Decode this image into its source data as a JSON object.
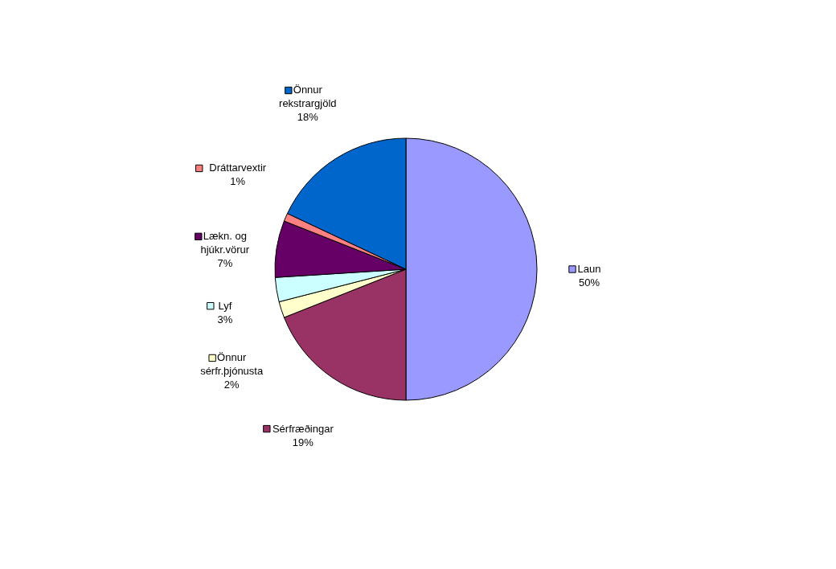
{
  "chart_data": {
    "type": "pie",
    "categories": [
      "Laun",
      "Sérfræðingar",
      "Önnur sérfr.þjónusta",
      "Lyf",
      "Lækn. og hjúkr.vörur",
      "Dráttarvextir",
      "Önnur rekstrargjöld"
    ],
    "values": [
      50,
      19,
      2,
      3,
      7,
      1,
      18
    ],
    "colors": [
      "#9999ff",
      "#993366",
      "#ffffcc",
      "#ccffff",
      "#660066",
      "#ff8080",
      "#0066cc"
    ],
    "value_labels": [
      "50%",
      "19%",
      "2%",
      "3%",
      "7%",
      "1%",
      "18%"
    ],
    "legend": "left"
  }
}
